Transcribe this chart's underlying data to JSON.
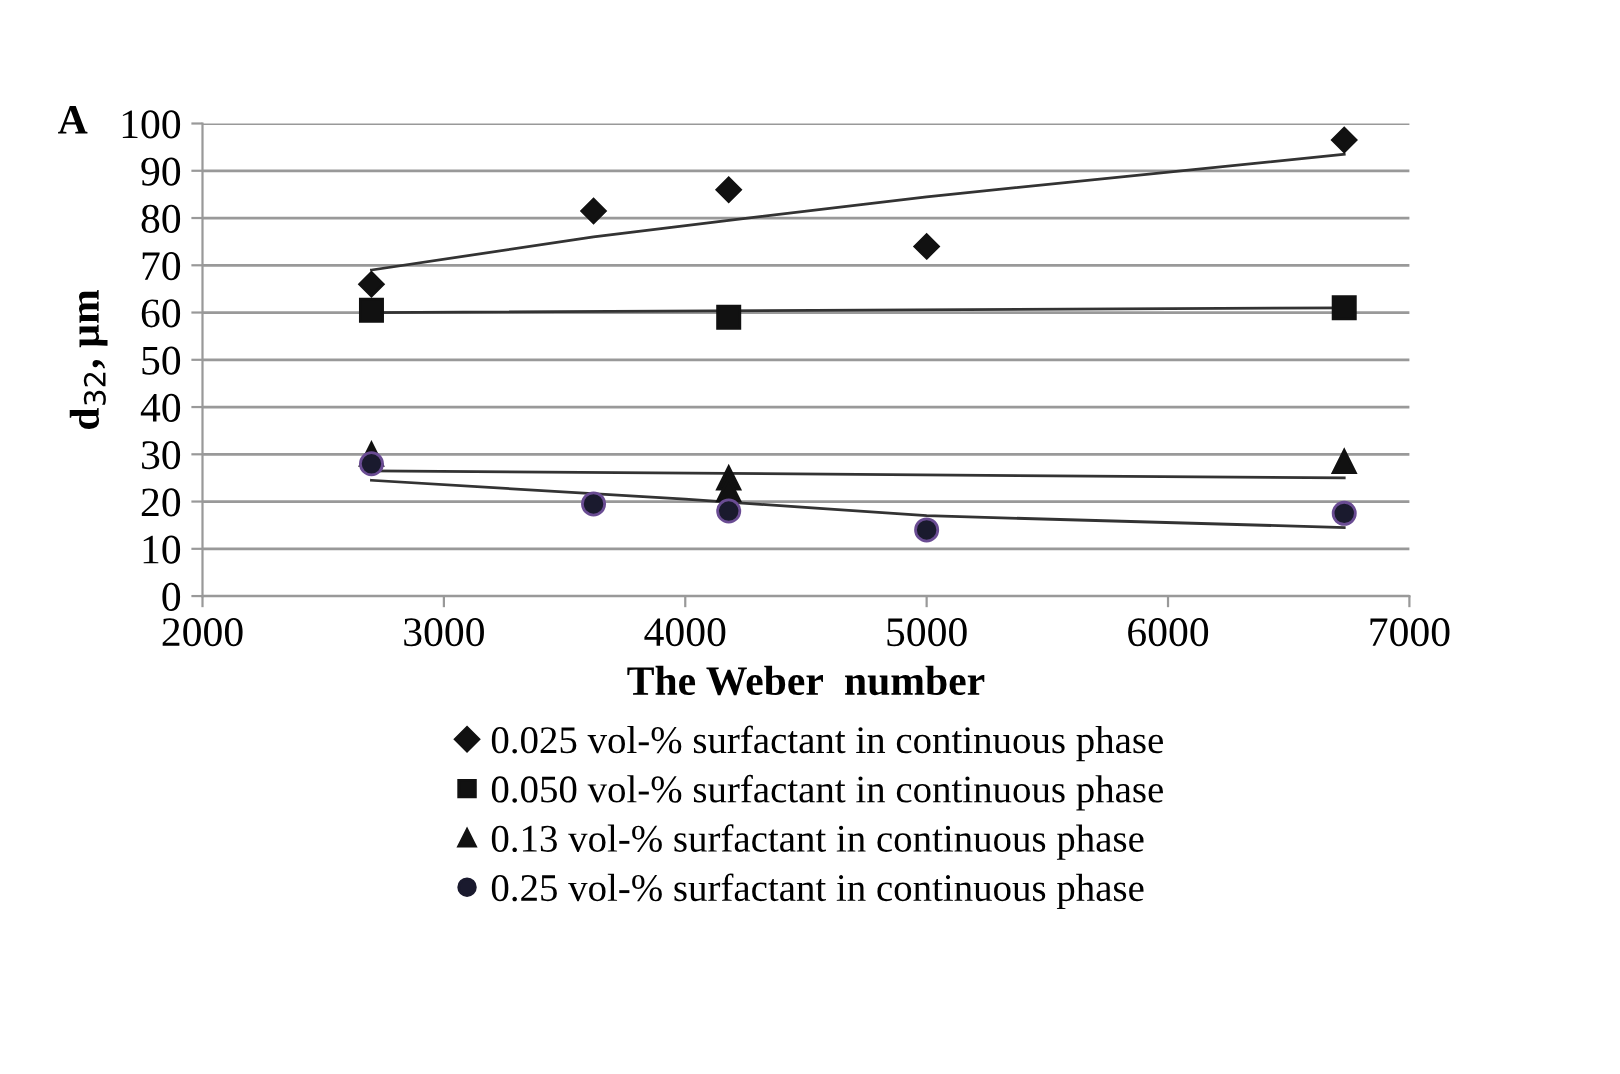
{
  "chart_data": {
    "type": "scatter",
    "xlabel": "The Weber  number",
    "ylabel": "d$_{32}$, µm",
    "annotations": [
      "A"
    ],
    "xlim": [
      2000,
      7000
    ],
    "xticks": [
      2000,
      3000,
      4000,
      5000,
      6000,
      7000
    ],
    "ylim": [
      0,
      100
    ],
    "yticks": [
      0,
      10,
      20,
      30,
      40,
      50,
      60,
      70,
      80,
      90,
      100
    ],
    "grid": "y",
    "legend": "bottom",
    "series": [
      {
        "name": "0.025 vol-% surfactant in continuous phase",
        "color": "#111111",
        "marker": "diamond",
        "x": [
          2700,
          3620,
          4180,
          5000,
          6730
        ],
        "values": [
          66,
          81.5,
          86,
          74,
          96.5
        ]
      },
      {
        "name": "0.050 vol-% surfactant in continuous phase",
        "color": "#111111",
        "marker": "square",
        "x": [
          2700,
          4180,
          6730
        ],
        "values": [
          60.5,
          59,
          61
        ]
      },
      {
        "name": "0.13 vol-% surfactant in continuous phase",
        "color": "#111111",
        "marker": "triangle",
        "x": [
          2700,
          4180,
          4180,
          6730
        ],
        "values": [
          30,
          25,
          22.5,
          28.5
        ]
      },
      {
        "name": "0.25 vol-% surfactant in continuous phase",
        "color": "#1a1a2e",
        "marker": "circle",
        "x": [
          2700,
          3620,
          4180,
          5000,
          6730
        ],
        "values": [
          28,
          19.5,
          18,
          14,
          17.5
        ]
      },
      {
        "type": "line",
        "color": "#333333",
        "x": [
          2700,
          3620,
          4180,
          5000,
          6730
        ],
        "values": [
          69,
          76,
          79.5,
          84.5,
          93.5
        ]
      },
      {
        "type": "line",
        "color": "#333333",
        "x": [
          2700,
          6730
        ],
        "values": [
          60,
          61
        ]
      },
      {
        "type": "line",
        "color": "#333333",
        "x": [
          2700,
          6730
        ],
        "values": [
          26.5,
          25
        ]
      },
      {
        "type": "line",
        "color": "#333333",
        "x": [
          2700,
          4000,
          5000,
          6730
        ],
        "values": [
          24.5,
          20.5,
          17,
          14.5
        ]
      }
    ]
  }
}
